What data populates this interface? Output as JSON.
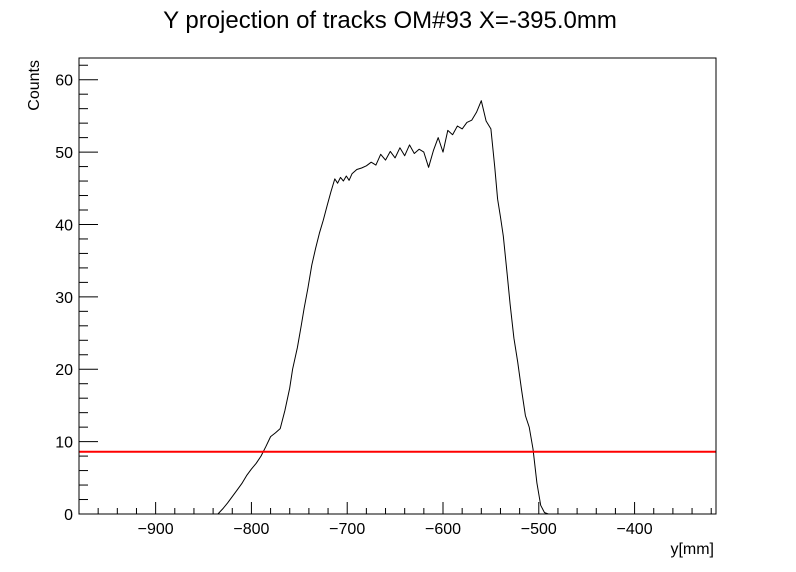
{
  "chart_data": {
    "type": "line",
    "title": "Y projection of tracks OM#93 X=-395.0mm",
    "xlabel": "y[mm]",
    "ylabel": "Counts",
    "xlim": [
      -980,
      -315
    ],
    "ylim": [
      0,
      63
    ],
    "x_ticks": [
      -900,
      -800,
      -700,
      -600,
      -500,
      -400
    ],
    "x_tick_labels": [
      "−900",
      "−800",
      "−700",
      "−600",
      "−500",
      "−400"
    ],
    "y_ticks": [
      0,
      10,
      20,
      30,
      40,
      50,
      60
    ],
    "y_tick_labels": [
      "0",
      "10",
      "20",
      "30",
      "40",
      "50",
      "60"
    ],
    "grid": false,
    "colors": {
      "histogram": "#000000",
      "threshold": "#ff0000",
      "frame": "#000000"
    },
    "series": [
      {
        "style": "histogram",
        "x": [
          -835,
          -830,
          -825,
          -820,
          -815,
          -810,
          -805,
          -800,
          -795,
          -790,
          -785,
          -780,
          -775,
          -770,
          -765,
          -760,
          -757,
          -752,
          -748,
          -745,
          -741,
          -737,
          -733,
          -729,
          -725,
          -721,
          -717,
          -713,
          -710,
          -707,
          -704,
          -701,
          -698,
          -695,
          -690,
          -685,
          -680,
          -675,
          -670,
          -665,
          -660,
          -655,
          -650,
          -645,
          -640,
          -635,
          -630,
          -625,
          -620,
          -615,
          -610,
          -605,
          -600,
          -595,
          -590,
          -585,
          -580,
          -575,
          -570,
          -565,
          -560,
          -555,
          -550,
          -546,
          -543,
          -540,
          -537,
          -533,
          -530,
          -526,
          -522,
          -518,
          -514,
          -510,
          -506,
          -502,
          -498,
          -494,
          -490,
          -486,
          -482,
          -478,
          -475
        ],
        "values": [
          0,
          0.7,
          1.5,
          2.4,
          3.3,
          4.2,
          5.3,
          6.2,
          7.0,
          8.0,
          9.3,
          10.7,
          11.2,
          11.8,
          14.3,
          17.4,
          20.0,
          23.0,
          26.0,
          28.4,
          31.2,
          34.4,
          36.7,
          38.8,
          40.6,
          42.6,
          44.5,
          46.3,
          45.7,
          46.5,
          46.0,
          46.7,
          46.1,
          47.0,
          47.6,
          47.8,
          48.1,
          48.6,
          48.2,
          49.7,
          48.9,
          50.1,
          49.2,
          50.6,
          49.5,
          51.0,
          49.8,
          50.4,
          50.0,
          47.9,
          50.2,
          52.0,
          50.0,
          53.0,
          52.4,
          53.6,
          53.2,
          54.1,
          54.4,
          55.5,
          57.1,
          54.3,
          53.2,
          48.0,
          43.5,
          41.0,
          38.4,
          33.1,
          29.0,
          24.3,
          21.0,
          17.2,
          13.6,
          12.0,
          9.0,
          4.3,
          1.2,
          0.2,
          0,
          0,
          0,
          0,
          0
        ]
      },
      {
        "style": "horizontal-line",
        "y": 8.6
      }
    ]
  }
}
